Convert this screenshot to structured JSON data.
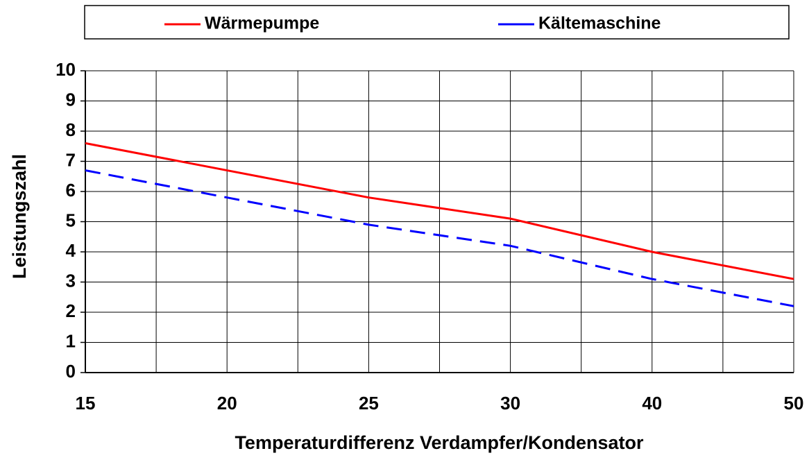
{
  "chart_data": {
    "type": "line",
    "x_label": "Temperaturdifferenz Verdampfer/Kondensator",
    "y_label": "Leistungszahl",
    "categories": [
      "15",
      "20",
      "25",
      "30",
      "40",
      "50"
    ],
    "series": [
      {
        "name": "Wärmepumpe",
        "color": "#ff0000",
        "dash": false,
        "values": [
          7.6,
          6.7,
          5.8,
          5.1,
          4.0,
          3.1
        ]
      },
      {
        "name": "Kältemaschine",
        "color": "#0000ff",
        "dash": true,
        "values": [
          6.7,
          5.8,
          4.9,
          4.2,
          3.1,
          2.2
        ]
      }
    ],
    "ylim": [
      0,
      10
    ],
    "yticks": [
      0,
      1,
      2,
      3,
      4,
      5,
      6,
      7,
      8,
      9,
      10
    ],
    "grid": true,
    "legend": "top"
  }
}
